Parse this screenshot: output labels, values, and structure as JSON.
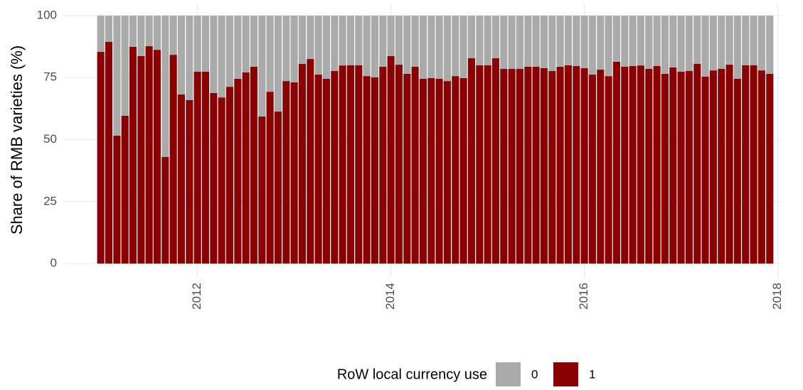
{
  "chart_data": {
    "type": "stacked_bar",
    "y_label": "Share of RMB varieties (%)",
    "legend_title": "RoW local currency use",
    "x": [
      2011,
      2011.083,
      2011.167,
      2011.25,
      2011.333,
      2011.417,
      2011.5,
      2011.583,
      2011.667,
      2011.75,
      2011.833,
      2011.917,
      2012,
      2012.083,
      2012.167,
      2012.25,
      2012.333,
      2012.417,
      2012.5,
      2012.583,
      2012.667,
      2012.75,
      2012.833,
      2012.917,
      2013,
      2013.083,
      2013.167,
      2013.25,
      2013.333,
      2013.417,
      2013.5,
      2013.583,
      2013.667,
      2013.75,
      2013.833,
      2013.917,
      2014,
      2014.083,
      2014.167,
      2014.25,
      2014.333,
      2014.417,
      2014.5,
      2014.583,
      2014.667,
      2014.75,
      2014.833,
      2014.917,
      2015,
      2015.083,
      2015.167,
      2015.25,
      2015.333,
      2015.417,
      2015.5,
      2015.583,
      2015.667,
      2015.75,
      2015.833,
      2015.917,
      2016,
      2016.083,
      2016.167,
      2016.25,
      2016.333,
      2016.417,
      2016.5,
      2016.583,
      2016.667,
      2016.75,
      2016.833,
      2016.917,
      2017,
      2017.083,
      2017.167,
      2017.25,
      2017.333,
      2017.417,
      2017.5,
      2017.583,
      2017.667,
      2017.75,
      2017.833,
      2017.917
    ],
    "series": [
      {
        "name": "1",
        "color": "#8b0000",
        "values": [
          85.4,
          89.4,
          51.6,
          59.6,
          87.4,
          83.7,
          87.7,
          86.2,
          43.0,
          84.2,
          68.2,
          65.9,
          77.4,
          77.4,
          68.8,
          67.0,
          71.3,
          74.5,
          77.1,
          79.4,
          59.3,
          69.3,
          61.3,
          73.6,
          73.1,
          80.5,
          82.5,
          76.2,
          74.5,
          77.7,
          79.9,
          80.0,
          80.0,
          75.6,
          75.1,
          79.4,
          83.7,
          80.2,
          76.5,
          79.4,
          74.5,
          74.8,
          74.5,
          73.6,
          75.6,
          74.8,
          82.8,
          80.0,
          80.0,
          82.8,
          78.5,
          78.5,
          78.5,
          79.4,
          79.4,
          78.8,
          77.7,
          79.4,
          80.0,
          79.7,
          78.8,
          76.2,
          78.2,
          75.6,
          81.4,
          79.4,
          79.7,
          79.9,
          78.5,
          79.7,
          76.5,
          79.1,
          77.4,
          77.7,
          80.5,
          75.4,
          77.9,
          78.5,
          80.2,
          74.5,
          80.0,
          80.0,
          77.9,
          76.5
        ]
      },
      {
        "name": "0",
        "color": "#aaaaaa",
        "values": [
          14.6,
          10.6,
          48.4,
          40.4,
          12.6,
          16.3,
          12.3,
          13.8,
          57.0,
          15.8,
          31.8,
          34.1,
          22.6,
          22.6,
          31.2,
          33.0,
          28.7,
          25.5,
          22.9,
          20.6,
          40.7,
          30.7,
          38.7,
          26.4,
          26.9,
          19.5,
          17.5,
          23.8,
          25.5,
          22.3,
          20.1,
          20.0,
          20.0,
          24.4,
          24.9,
          20.6,
          16.3,
          19.8,
          23.5,
          20.6,
          25.5,
          25.2,
          25.5,
          26.4,
          24.4,
          25.2,
          17.2,
          20.0,
          20.0,
          17.2,
          21.5,
          21.5,
          21.5,
          20.6,
          20.6,
          21.2,
          22.3,
          20.6,
          20.0,
          20.3,
          21.2,
          23.8,
          21.8,
          24.4,
          18.6,
          20.6,
          20.3,
          20.1,
          21.5,
          20.3,
          23.5,
          20.9,
          22.6,
          22.3,
          19.5,
          24.6,
          22.1,
          21.5,
          19.8,
          25.5,
          20.0,
          20.0,
          22.1,
          23.5
        ]
      }
    ],
    "legend_order": [
      "0",
      "1"
    ],
    "xlim": [
      2010.62,
      2018.04
    ],
    "xticks": [
      2012,
      2014,
      2016,
      2018
    ],
    "ylim": [
      -5,
      105
    ],
    "yticks": [
      0,
      25,
      50,
      75,
      100
    ],
    "grid": true
  }
}
